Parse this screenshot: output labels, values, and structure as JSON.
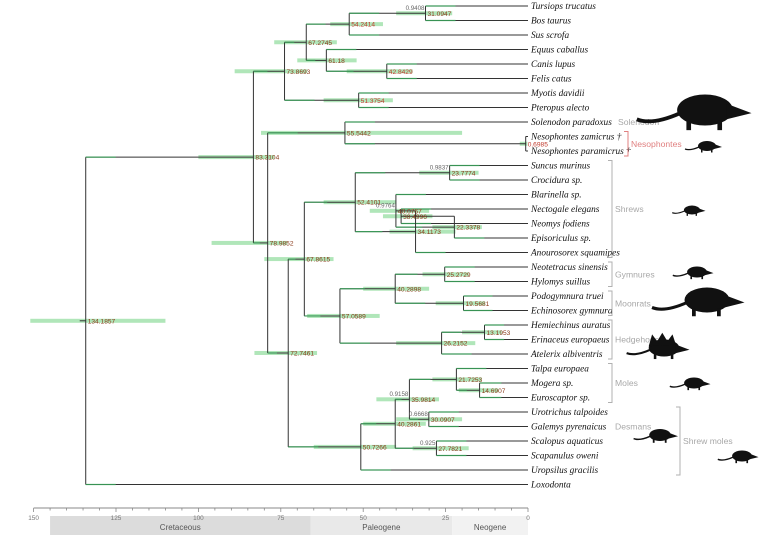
{
  "chart_data": {
    "type": "phylogenetic-tree",
    "title": "",
    "axis": {
      "label": "",
      "unit": "Ma",
      "ticks": [
        150,
        125,
        100,
        75,
        50,
        25,
        0
      ],
      "range": [
        150,
        0
      ]
    },
    "periods": [
      {
        "name": "Cretaceous",
        "start": 145,
        "end": 66,
        "color": "#dcdcdc"
      },
      {
        "name": "Paleogene",
        "start": 66,
        "end": 23,
        "color": "#e9e9e9"
      },
      {
        "name": "Neogene",
        "start": 23,
        "end": 0,
        "color": "#f2f2f2"
      }
    ],
    "tips": [
      {
        "id": "t0",
        "name": "Tursiops trucatus",
        "dagger": false
      },
      {
        "id": "t1",
        "name": "Bos taurus",
        "dagger": false
      },
      {
        "id": "t2",
        "name": "Sus scrofa",
        "dagger": false
      },
      {
        "id": "t3",
        "name": "Equus caballus",
        "dagger": false
      },
      {
        "id": "t4",
        "name": "Canis lupus",
        "dagger": false
      },
      {
        "id": "t5",
        "name": "Felis catus",
        "dagger": false
      },
      {
        "id": "t6",
        "name": "Myotis davidii",
        "dagger": false
      },
      {
        "id": "t7",
        "name": "Pteropus alecto",
        "dagger": false
      },
      {
        "id": "t8",
        "name": "Solenodon paradoxus",
        "dagger": false
      },
      {
        "id": "t9",
        "name": "Nesophontes zamicrus",
        "dagger": true
      },
      {
        "id": "t10",
        "name": "Nesophontes paramicrus",
        "dagger": true
      },
      {
        "id": "t11",
        "name": "Suncus murinus",
        "dagger": false
      },
      {
        "id": "t12",
        "name": "Crocidura sp.",
        "dagger": false
      },
      {
        "id": "t13",
        "name": "Blarinella sp.",
        "dagger": false
      },
      {
        "id": "t14",
        "name": "Nectogale elegans",
        "dagger": false
      },
      {
        "id": "t15",
        "name": "Neomys fodiens",
        "dagger": false
      },
      {
        "id": "t16",
        "name": "Episoriculus sp.",
        "dagger": false
      },
      {
        "id": "t17",
        "name": "Anourosorex squamipes",
        "dagger": false
      },
      {
        "id": "t18",
        "name": "Neotetracus sinensis",
        "dagger": false
      },
      {
        "id": "t19",
        "name": "Hylomys suillus",
        "dagger": false
      },
      {
        "id": "t20",
        "name": "Podogymnura truei",
        "dagger": false
      },
      {
        "id": "t21",
        "name": "Echinosorex gymnura",
        "dagger": false
      },
      {
        "id": "t22",
        "name": "Hemiechinus auratus",
        "dagger": false
      },
      {
        "id": "t23",
        "name": "Erinaceus europaeus",
        "dagger": false
      },
      {
        "id": "t24",
        "name": "Atelerix albiventris",
        "dagger": false
      },
      {
        "id": "t25",
        "name": "Talpa europaea",
        "dagger": false
      },
      {
        "id": "t26",
        "name": "Mogera sp.",
        "dagger": false
      },
      {
        "id": "t27",
        "name": "Euroscaptor sp.",
        "dagger": false
      },
      {
        "id": "t28",
        "name": "Urotrichus talpoides",
        "dagger": false
      },
      {
        "id": "t29",
        "name": "Galemys pyrenaicus",
        "dagger": false
      },
      {
        "id": "t30",
        "name": "Scalopus aquaticus",
        "dagger": false
      },
      {
        "id": "t31",
        "name": "Scapanulus oweni",
        "dagger": false
      },
      {
        "id": "t32",
        "name": "Uropsilus gracilis",
        "dagger": false
      },
      {
        "id": "t33",
        "name": "Loxodonta",
        "dagger": false
      }
    ],
    "nodes": [
      {
        "id": "n1",
        "age": 31.0947,
        "support": "0.9408",
        "ci": [
          23,
          40
        ],
        "red": false,
        "children": [
          "t0",
          "t1"
        ]
      },
      {
        "id": "n2",
        "age": 54.2414,
        "support": "",
        "ci": [
          44,
          60
        ],
        "red": true,
        "children": [
          "n1",
          "t2"
        ]
      },
      {
        "id": "n3",
        "age": 67.2745,
        "support": "",
        "ci": [
          58,
          77
        ],
        "red": false,
        "children": [
          "n2",
          "n4"
        ]
      },
      {
        "id": "n5",
        "age": 42.8429,
        "support": "",
        "ci": [
          35,
          55
        ],
        "red": true,
        "children": [
          "t4",
          "t5"
        ]
      },
      {
        "id": "n4",
        "age": 61.18,
        "support": "",
        "ci": [
          52,
          70
        ],
        "red": false,
        "children": [
          "t3",
          "n5"
        ]
      },
      {
        "id": "n6",
        "age": 73.8693,
        "support": "",
        "ci": [
          67,
          89
        ],
        "red": false,
        "children": [
          "n3",
          "n7"
        ]
      },
      {
        "id": "n7",
        "age": 51.3754,
        "support": "",
        "ci": [
          41,
          62
        ],
        "red": true,
        "children": [
          "t6",
          "t7"
        ]
      },
      {
        "id": "n8",
        "age": 0.6985,
        "support": "",
        "ci": [
          0.2,
          2.5
        ],
        "red": true,
        "children": [
          "t9",
          "t10"
        ]
      },
      {
        "id": "n9",
        "age": 55.5442,
        "support": "",
        "ci": [
          20,
          81
        ],
        "red": false,
        "children": [
          "t8",
          "n8"
        ]
      },
      {
        "id": "n10",
        "age": 23.7774,
        "support": "0.9837",
        "ci": [
          15,
          33
        ],
        "red": false,
        "children": [
          "t11",
          "t12"
        ]
      },
      {
        "id": "n11",
        "age": 38.4996,
        "support": "",
        "ci": [
          29,
          44
        ],
        "red": false,
        "children": [
          "t14",
          "t15"
        ]
      },
      {
        "id": "n12",
        "age": 40.0767,
        "support": "0.9764",
        "ci": [
          30,
          48
        ],
        "red": false,
        "children": [
          "t13",
          "n13"
        ]
      },
      {
        "id": "n13",
        "age": 22.3378,
        "support": "",
        "ci": [
          14,
          29
        ],
        "red": false,
        "children": [
          "n11",
          "t16"
        ]
      },
      {
        "id": "n14",
        "age": 34.1173,
        "support": "",
        "ci": [
          22,
          42
        ],
        "red": false,
        "children": [
          "n12",
          "t17"
        ]
      },
      {
        "id": "n15",
        "age": 52.4101,
        "support": "",
        "ci": [
          40,
          62
        ],
        "red": false,
        "children": [
          "n10",
          "n14"
        ]
      },
      {
        "id": "n16",
        "age": 25.2729,
        "support": "",
        "ci": [
          18,
          32
        ],
        "red": false,
        "children": [
          "t18",
          "t19"
        ]
      },
      {
        "id": "n17",
        "age": 19.5681,
        "support": "",
        "ci": [
          13,
          28
        ],
        "red": false,
        "children": [
          "t20",
          "t21"
        ]
      },
      {
        "id": "n18",
        "age": 40.2898,
        "support": "",
        "ci": [
          30,
          50
        ],
        "red": false,
        "children": [
          "n16",
          "n17"
        ]
      },
      {
        "id": "n19",
        "age": 13.1953,
        "support": "",
        "ci": [
          8,
          20
        ],
        "red": false,
        "children": [
          "t22",
          "t23"
        ]
      },
      {
        "id": "n20",
        "age": 26.2152,
        "support": "",
        "ci": [
          16,
          40
        ],
        "red": false,
        "children": [
          "n19",
          "t24"
        ]
      },
      {
        "id": "n21",
        "age": 57.0589,
        "support": "",
        "ci": [
          45,
          67
        ],
        "red": false,
        "children": [
          "n18",
          "n20"
        ]
      },
      {
        "id": "n22",
        "age": 67.8615,
        "support": "",
        "ci": [
          59,
          80
        ],
        "red": false,
        "children": [
          "n15",
          "n21"
        ]
      },
      {
        "id": "n23",
        "age": 21.7253,
        "support": "",
        "ci": [
          14,
          29
        ],
        "red": false,
        "children": [
          "t25",
          "n24"
        ]
      },
      {
        "id": "n24",
        "age": 14.6907,
        "support": "",
        "ci": [
          9,
          21
        ],
        "red": false,
        "children": [
          "t26",
          "t27"
        ]
      },
      {
        "id": "n25",
        "age": 35.9814,
        "support": "0.9158",
        "ci": [
          27,
          46
        ],
        "red": false,
        "children": [
          "n23",
          "n26"
        ]
      },
      {
        "id": "n26",
        "age": 30.0907,
        "support": "0.6668",
        "ci": [
          20,
          40
        ],
        "red": false,
        "children": [
          "t28",
          "t29"
        ]
      },
      {
        "id": "n27",
        "age": 27.7821,
        "support": "0.925",
        "ci": [
          18,
          35
        ],
        "red": false,
        "children": [
          "t30",
          "t31"
        ]
      },
      {
        "id": "n28",
        "age": 40.2861,
        "support": "",
        "ci": [
          31,
          50
        ],
        "red": false,
        "children": [
          "n25",
          "n27"
        ]
      },
      {
        "id": "n29",
        "age": 50.7266,
        "support": "",
        "ci": [
          40,
          65
        ],
        "red": false,
        "children": [
          "n28",
          "t32"
        ]
      },
      {
        "id": "n30",
        "age": 72.7461,
        "support": "",
        "ci": [
          64,
          83
        ],
        "red": false,
        "children": [
          "n22",
          "n29"
        ]
      },
      {
        "id": "n31",
        "age": 78.9852,
        "support": "",
        "ci": [
          73,
          96
        ],
        "red": false,
        "children": [
          "n9",
          "n30"
        ]
      },
      {
        "id": "n32",
        "age": 83.3104,
        "support": "",
        "ci": [
          77,
          100
        ],
        "red": false,
        "children": [
          "n6",
          "n31"
        ]
      },
      {
        "id": "n33",
        "age": 134.1857,
        "support": "",
        "ci": [
          110,
          151
        ],
        "red": false,
        "children": [
          "n32",
          "t33"
        ]
      }
    ],
    "groups": [
      {
        "name": "Solenodon",
        "tips": [
          "t8"
        ],
        "color": "#b0b0b0",
        "bracket": false
      },
      {
        "name": "Nesophontes",
        "tips": [
          "t9",
          "t10"
        ],
        "color": "#e08080",
        "bracket": true
      },
      {
        "name": "Shrews",
        "tips": [
          "t11",
          "t17"
        ],
        "color": "#b0b0b0",
        "bracket": true
      },
      {
        "name": "Gymnures",
        "tips": [
          "t18",
          "t19"
        ],
        "color": "#b0b0b0",
        "bracket": true
      },
      {
        "name": "Moonrats",
        "tips": [
          "t20",
          "t21"
        ],
        "color": "#b0b0b0",
        "bracket": true
      },
      {
        "name": "Hedgehogs",
        "tips": [
          "t22",
          "t24"
        ],
        "color": "#b0b0b0",
        "bracket": true
      },
      {
        "name": "Moles",
        "tips": [
          "t25",
          "t27"
        ],
        "color": "#b0b0b0",
        "bracket": true
      },
      {
        "name": "Desmans",
        "tips": [
          "t29"
        ],
        "color": "#b0b0b0",
        "bracket": false
      },
      {
        "name": "Shrew moles",
        "tips": [
          "t28",
          "t32"
        ],
        "color": "#b0b0b0",
        "bracket": true
      }
    ],
    "silhouettes": [
      {
        "name": "solenodon-silhouette",
        "group": "Solenodon"
      },
      {
        "name": "nesophontes-silhouette",
        "group": "Nesophontes"
      },
      {
        "name": "shrew-silhouette",
        "group": "Shrews"
      },
      {
        "name": "gymnure-silhouette",
        "group": "Gymnures"
      },
      {
        "name": "moonrat-silhouette",
        "group": "Moonrats"
      },
      {
        "name": "hedgehog-silhouette",
        "group": "Hedgehogs"
      },
      {
        "name": "mole-silhouette",
        "group": "Moles"
      },
      {
        "name": "desman-silhouette",
        "group": "Desmans"
      },
      {
        "name": "shrew-mole-silhouette",
        "group": "Shrew moles"
      }
    ]
  }
}
